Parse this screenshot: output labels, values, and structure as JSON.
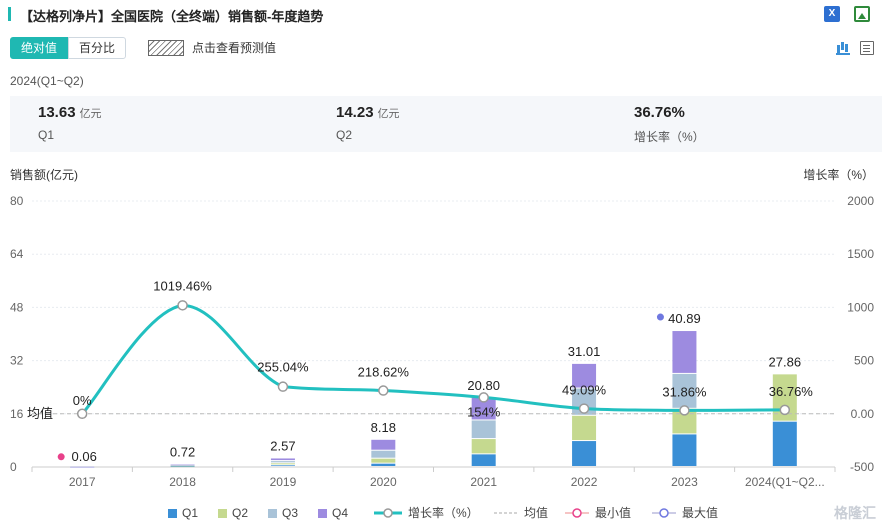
{
  "header": {
    "title": "【达格列净片】全国医院（全终端）销售额-年度趋势",
    "icons": [
      "excel-export-icon",
      "image-export-icon"
    ]
  },
  "controls": {
    "toggle_absolute": "绝对值",
    "toggle_percent": "百分比",
    "forecast_label": "点击查看预测值",
    "view_icons": [
      "bar-chart-icon",
      "table-icon"
    ]
  },
  "summary": {
    "period": "2024(Q1~Q2)",
    "stats": [
      {
        "value": "13.63",
        "unit": "亿元",
        "label": "Q1"
      },
      {
        "value": "14.23",
        "unit": "亿元",
        "label": "Q2"
      },
      {
        "value": "36.76%",
        "unit": "",
        "label": "增长率（%）"
      }
    ]
  },
  "watermark": "格隆汇",
  "chart_data": {
    "type": "bar",
    "stacked": true,
    "ylabel": "销售额(亿元)",
    "y2label": "增长率（%）",
    "ylim": [
      0,
      80
    ],
    "y2lim": [
      -500,
      2000
    ],
    "yticks": [
      0,
      16,
      32,
      48,
      64,
      80
    ],
    "y2ticks": [
      -500,
      0,
      500,
      1000,
      1500,
      2000
    ],
    "y2tick_labels": [
      "-500",
      "0.00",
      "500",
      "1000",
      "1500",
      "2000"
    ],
    "categories": [
      "2017",
      "2018",
      "2019",
      "2020",
      "2021",
      "2022",
      "2023",
      "2024(Q1~Q2..."
    ],
    "series": [
      {
        "name": "Q1",
        "color": "#3a8fd6",
        "values": [
          0.02,
          0.18,
          0.5,
          1.0,
          3.8,
          7.8,
          9.8,
          13.63
        ]
      },
      {
        "name": "Q2",
        "color": "#c5d98f",
        "values": [
          0.02,
          0.18,
          0.6,
          1.5,
          4.6,
          7.6,
          7.7,
          14.23
        ]
      },
      {
        "name": "Q3",
        "color": "#a9c3d8",
        "values": [
          0.01,
          0.18,
          0.67,
          2.4,
          5.6,
          8.2,
          10.5,
          0
        ]
      },
      {
        "name": "Q4",
        "color": "#9d8be0",
        "values": [
          0.01,
          0.18,
          0.8,
          3.28,
          6.8,
          7.41,
          12.89,
          0
        ]
      }
    ],
    "totals": [
      0.06,
      0.72,
      2.57,
      8.18,
      20.8,
      31.01,
      40.89,
      27.86
    ],
    "total_labels": [
      "0.06",
      "0.72",
      "2.57",
      "8.18",
      "20.80",
      "31.01",
      "40.89",
      "27.86"
    ],
    "growth": {
      "name": "增长率（%）",
      "color": "#22c0c0",
      "values": [
        0,
        1019.46,
        255.04,
        218.62,
        154,
        49.09,
        31.86,
        36.76
      ],
      "labels": [
        "0%",
        "1019.46%",
        "255.04%",
        "218.62%",
        "154%",
        "49.09%",
        "31.86%",
        "36.76%"
      ]
    },
    "average": {
      "name": "均值",
      "label": "均值",
      "value": 0
    },
    "min": {
      "name": "最小值",
      "index": 0,
      "color": "#e8418a"
    },
    "max": {
      "name": "最大值",
      "index": 6,
      "color": "#6f78e0"
    },
    "legend": [
      "Q1",
      "Q2",
      "Q3",
      "Q4",
      "增长率（%）",
      "均值",
      "最小值",
      "最大值"
    ]
  }
}
